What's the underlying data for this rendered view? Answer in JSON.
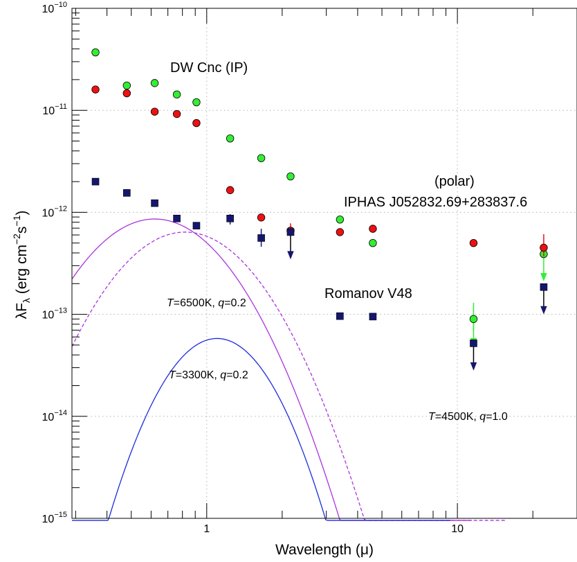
{
  "chart_data": {
    "type": "scatter",
    "xlabel": "Wavelength (μ)",
    "ylabel_parts": [
      "λF",
      "λ",
      " (erg cm",
      "−2",
      "s",
      "−1",
      ")"
    ],
    "x_scale": "log",
    "y_scale": "log",
    "xlim": [
      0.29,
      30
    ],
    "ylim": [
      1e-15,
      1e-10
    ],
    "grid": true,
    "x_ticks": [
      {
        "value": 1,
        "label": "1"
      },
      {
        "value": 10,
        "label": "10"
      }
    ],
    "y_ticks": [
      {
        "value": 1e-15,
        "base": "10",
        "exp": "−15"
      },
      {
        "value": 1e-14,
        "base": "10",
        "exp": "−14"
      },
      {
        "value": 1e-13,
        "base": "10",
        "exp": "−13"
      },
      {
        "value": 1e-12,
        "base": "10",
        "exp": "−12"
      },
      {
        "value": 1e-11,
        "base": "10",
        "exp": "−11"
      },
      {
        "value": 1e-10,
        "base": "10",
        "exp": "−10"
      }
    ],
    "series": [
      {
        "marker": "circle",
        "color": "#33ee33",
        "points": [
          {
            "x": 0.36,
            "y": 3.7e-11
          },
          {
            "x": 0.48,
            "y": 1.75e-11
          },
          {
            "x": 0.62,
            "y": 1.85e-11
          },
          {
            "x": 0.76,
            "y": 1.43e-11
          },
          {
            "x": 0.91,
            "y": 1.2e-11
          },
          {
            "x": 1.24,
            "y": 5.3e-12
          },
          {
            "x": 1.65,
            "y": 3.4e-12
          },
          {
            "x": 2.16,
            "y": 2.25e-12
          },
          {
            "x": 3.4,
            "y": 8.5e-13
          },
          {
            "x": 4.6,
            "y": 5e-13
          },
          {
            "x": 11.6,
            "y": 9e-14,
            "err": [
              6.8e-14,
              1.3e-13
            ],
            "upper": true
          },
          {
            "x": 22.1,
            "y": 3.9e-13,
            "upper": true
          }
        ]
      },
      {
        "marker": "circle",
        "color": "#ee1111",
        "points": [
          {
            "x": 0.36,
            "y": 1.6e-11
          },
          {
            "x": 0.48,
            "y": 1.47e-11
          },
          {
            "x": 0.62,
            "y": 9.7e-12
          },
          {
            "x": 0.76,
            "y": 9.2e-12
          },
          {
            "x": 0.91,
            "y": 7.5e-12
          },
          {
            "x": 1.24,
            "y": 1.65e-12
          },
          {
            "x": 1.65,
            "y": 8.9e-13
          },
          {
            "x": 2.16,
            "y": 6.6e-13,
            "err": [
              5.8e-13,
              7.8e-13
            ]
          },
          {
            "x": 3.4,
            "y": 6.4e-13
          },
          {
            "x": 4.6,
            "y": 6.9e-13
          },
          {
            "x": 11.6,
            "y": 5e-13
          },
          {
            "x": 22.1,
            "y": 4.5e-13,
            "err": [
              3.7e-13,
              6.1e-13
            ]
          }
        ]
      },
      {
        "marker": "square",
        "color": "#15176e",
        "points": [
          {
            "x": 0.36,
            "y": 2e-12
          },
          {
            "x": 0.48,
            "y": 1.55e-12
          },
          {
            "x": 0.62,
            "y": 1.23e-12
          },
          {
            "x": 0.76,
            "y": 8.7e-13
          },
          {
            "x": 0.91,
            "y": 7.4e-13
          },
          {
            "x": 1.24,
            "y": 8.7e-13,
            "err": [
              7.6e-13,
              9.6e-13
            ]
          },
          {
            "x": 1.65,
            "y": 5.6e-13,
            "err": [
              4.6e-13,
              6.9e-13
            ]
          },
          {
            "x": 2.16,
            "y": 6.4e-13,
            "upper": true
          },
          {
            "x": 3.4,
            "y": 9.6e-14
          },
          {
            "x": 4.6,
            "y": 9.5e-14
          },
          {
            "x": 11.6,
            "y": 5.2e-14,
            "upper": true
          },
          {
            "x": 22.1,
            "y": 1.85e-13,
            "upper": true
          }
        ]
      }
    ],
    "curves": [
      {
        "label_T": "6500K",
        "label_q": "0.2",
        "color": "#aa33dd",
        "style": "solid",
        "peak_x": 0.62,
        "peak_y": 8.6e-13,
        "sigma": 0.43,
        "left_x": 0.29,
        "right_x": 11.4
      },
      {
        "label_T": "4500K",
        "label_q": "1.0",
        "color": "#aa33dd",
        "style": "dashed",
        "peak_x": 0.82,
        "peak_y": 6.4e-13,
        "sigma": 0.426,
        "left_x": 0.29,
        "right_x": 15.5
      },
      {
        "label_T": "3300K",
        "label_q": "0.2",
        "color": "#1a2bdd",
        "style": "solid",
        "peak_x": 1.1,
        "peak_y": 5.8e-14,
        "sigma": 0.325,
        "left_x": 0.29,
        "right_x": 9.4
      }
    ],
    "annotations": {
      "dw_cnc": "DW Cnc (IP)",
      "polar": "(polar)",
      "iphas": "IPHAS J052832.69+283837.6",
      "romanov": "Romanov V48",
      "eqT": "T",
      "eqq": "q",
      "eq_sep": "=",
      "eq_mid": ", "
    }
  }
}
